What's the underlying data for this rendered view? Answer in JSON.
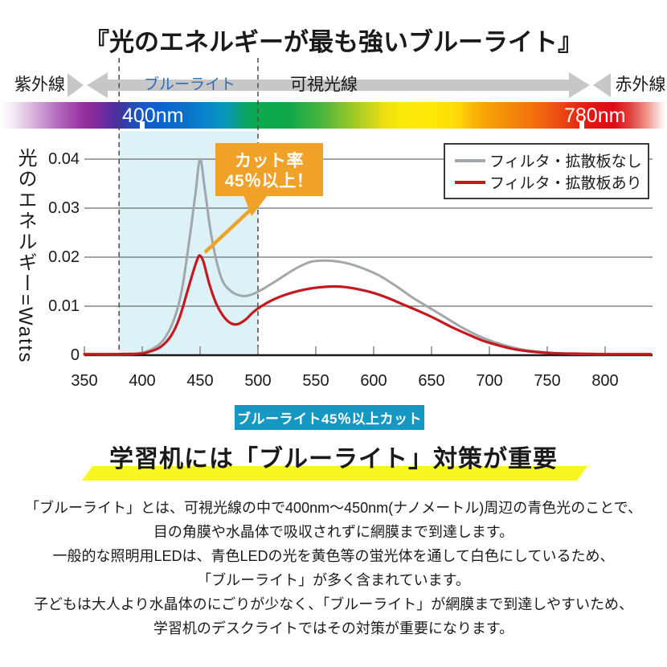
{
  "title": "『光のエネルギーが最も強いブルーライト』",
  "spectrum_bands": {
    "uv_label": "紫外線",
    "blue_light_label": "ブルーライト",
    "visible_label": "可視光線",
    "ir_label": "赤外線",
    "start_nm_label": "400nm",
    "end_nm_label": "780nm"
  },
  "colors": {
    "blue_light_text": "#2d6db6",
    "arrow_gray": "#c7c7c7",
    "shaded_band": "#ddf2f7",
    "callout_bg": "#efa227",
    "badge_bg": "#1798c3",
    "heading_highlight": "#f7f71f",
    "series_gray": "#a1a7ab",
    "series_red": "#c4191f"
  },
  "callout": {
    "line1": "カット率",
    "line2": "45％以上！"
  },
  "badge_text": "ブルーライト45％以上カット",
  "heading": "学習机には「ブルーライト」対策が重要",
  "paragraphs": [
    "「ブルーライト」とは、可視光線の中で400nm～450nm(ナノメートル)周辺の青色光のことで、",
    "目の角膜や水晶体で吸収されずに網膜まで到達します。",
    "一般的な照明用LEDは、青色LEDの光を黄色等の蛍光体を通して白色にしているため、",
    "「ブルーライト」が多く含まれています。",
    "子どもは大人より水晶体のにごりが少なく、「ブルーライト」が網膜まで到達しやすいため、",
    "学習机のデスクライトではその対策が重要になります。"
  ],
  "chart_data": {
    "type": "line",
    "ylabel": "光のエネルギー=Watts",
    "xticks": [
      350,
      400,
      450,
      500,
      550,
      600,
      650,
      700,
      750,
      800
    ],
    "ytick_labels": [
      "0",
      "0.01",
      "0.02",
      "0.03",
      "0.04"
    ],
    "xlim": [
      350,
      810
    ],
    "ylim": [
      0,
      0.044
    ],
    "grid": true,
    "legend_position": "top-right",
    "highlight_band_nm": [
      380,
      500
    ],
    "series": [
      {
        "name": "フィルタ・拡散板なし",
        "color": "#a1a7ab",
        "points": [
          [
            350,
            0.0002
          ],
          [
            385,
            0.0002
          ],
          [
            398,
            0.0004
          ],
          [
            408,
            0.0012
          ],
          [
            418,
            0.003
          ],
          [
            427,
            0.007
          ],
          [
            434,
            0.013
          ],
          [
            441,
            0.024
          ],
          [
            446,
            0.033
          ],
          [
            450,
            0.04
          ],
          [
            454,
            0.034
          ],
          [
            460,
            0.024
          ],
          [
            468,
            0.016
          ],
          [
            476,
            0.0132
          ],
          [
            486,
            0.0121
          ],
          [
            495,
            0.0124
          ],
          [
            505,
            0.0136
          ],
          [
            518,
            0.0155
          ],
          [
            532,
            0.0176
          ],
          [
            545,
            0.019
          ],
          [
            555,
            0.0193
          ],
          [
            566,
            0.0192
          ],
          [
            578,
            0.0187
          ],
          [
            592,
            0.0176
          ],
          [
            606,
            0.0161
          ],
          [
            620,
            0.014
          ],
          [
            634,
            0.0117
          ],
          [
            648,
            0.0097
          ],
          [
            662,
            0.0077
          ],
          [
            676,
            0.0057
          ],
          [
            690,
            0.004
          ],
          [
            704,
            0.0027
          ],
          [
            718,
            0.0017
          ],
          [
            732,
            0.001
          ],
          [
            748,
            0.0006
          ],
          [
            768,
            0.0003
          ],
          [
            800,
            0.0002
          ]
        ]
      },
      {
        "name": "フィルタ・拡散板あり",
        "color": "#c4191f",
        "points": [
          [
            350,
            0.0002
          ],
          [
            395,
            0.0003
          ],
          [
            406,
            0.0007
          ],
          [
            416,
            0.0017
          ],
          [
            425,
            0.004
          ],
          [
            432,
            0.0075
          ],
          [
            439,
            0.013
          ],
          [
            444,
            0.017
          ],
          [
            448,
            0.0198
          ],
          [
            450,
            0.0203
          ],
          [
            453,
            0.019
          ],
          [
            458,
            0.0145
          ],
          [
            464,
            0.0105
          ],
          [
            470,
            0.008
          ],
          [
            476,
            0.0066
          ],
          [
            482,
            0.0063
          ],
          [
            489,
            0.0072
          ],
          [
            496,
            0.0088
          ],
          [
            503,
            0.01
          ],
          [
            512,
            0.0112
          ],
          [
            522,
            0.0122
          ],
          [
            535,
            0.0131
          ],
          [
            548,
            0.0137
          ],
          [
            562,
            0.014
          ],
          [
            575,
            0.0139
          ],
          [
            588,
            0.0134
          ],
          [
            600,
            0.0127
          ],
          [
            612,
            0.0117
          ],
          [
            625,
            0.0104
          ],
          [
            638,
            0.0091
          ],
          [
            652,
            0.0076
          ],
          [
            666,
            0.0059
          ],
          [
            680,
            0.0044
          ],
          [
            694,
            0.003
          ],
          [
            708,
            0.002
          ],
          [
            722,
            0.0012
          ],
          [
            738,
            0.0007
          ],
          [
            755,
            0.0004
          ],
          [
            780,
            0.0003
          ],
          [
            800,
            0.0002
          ]
        ]
      }
    ]
  }
}
